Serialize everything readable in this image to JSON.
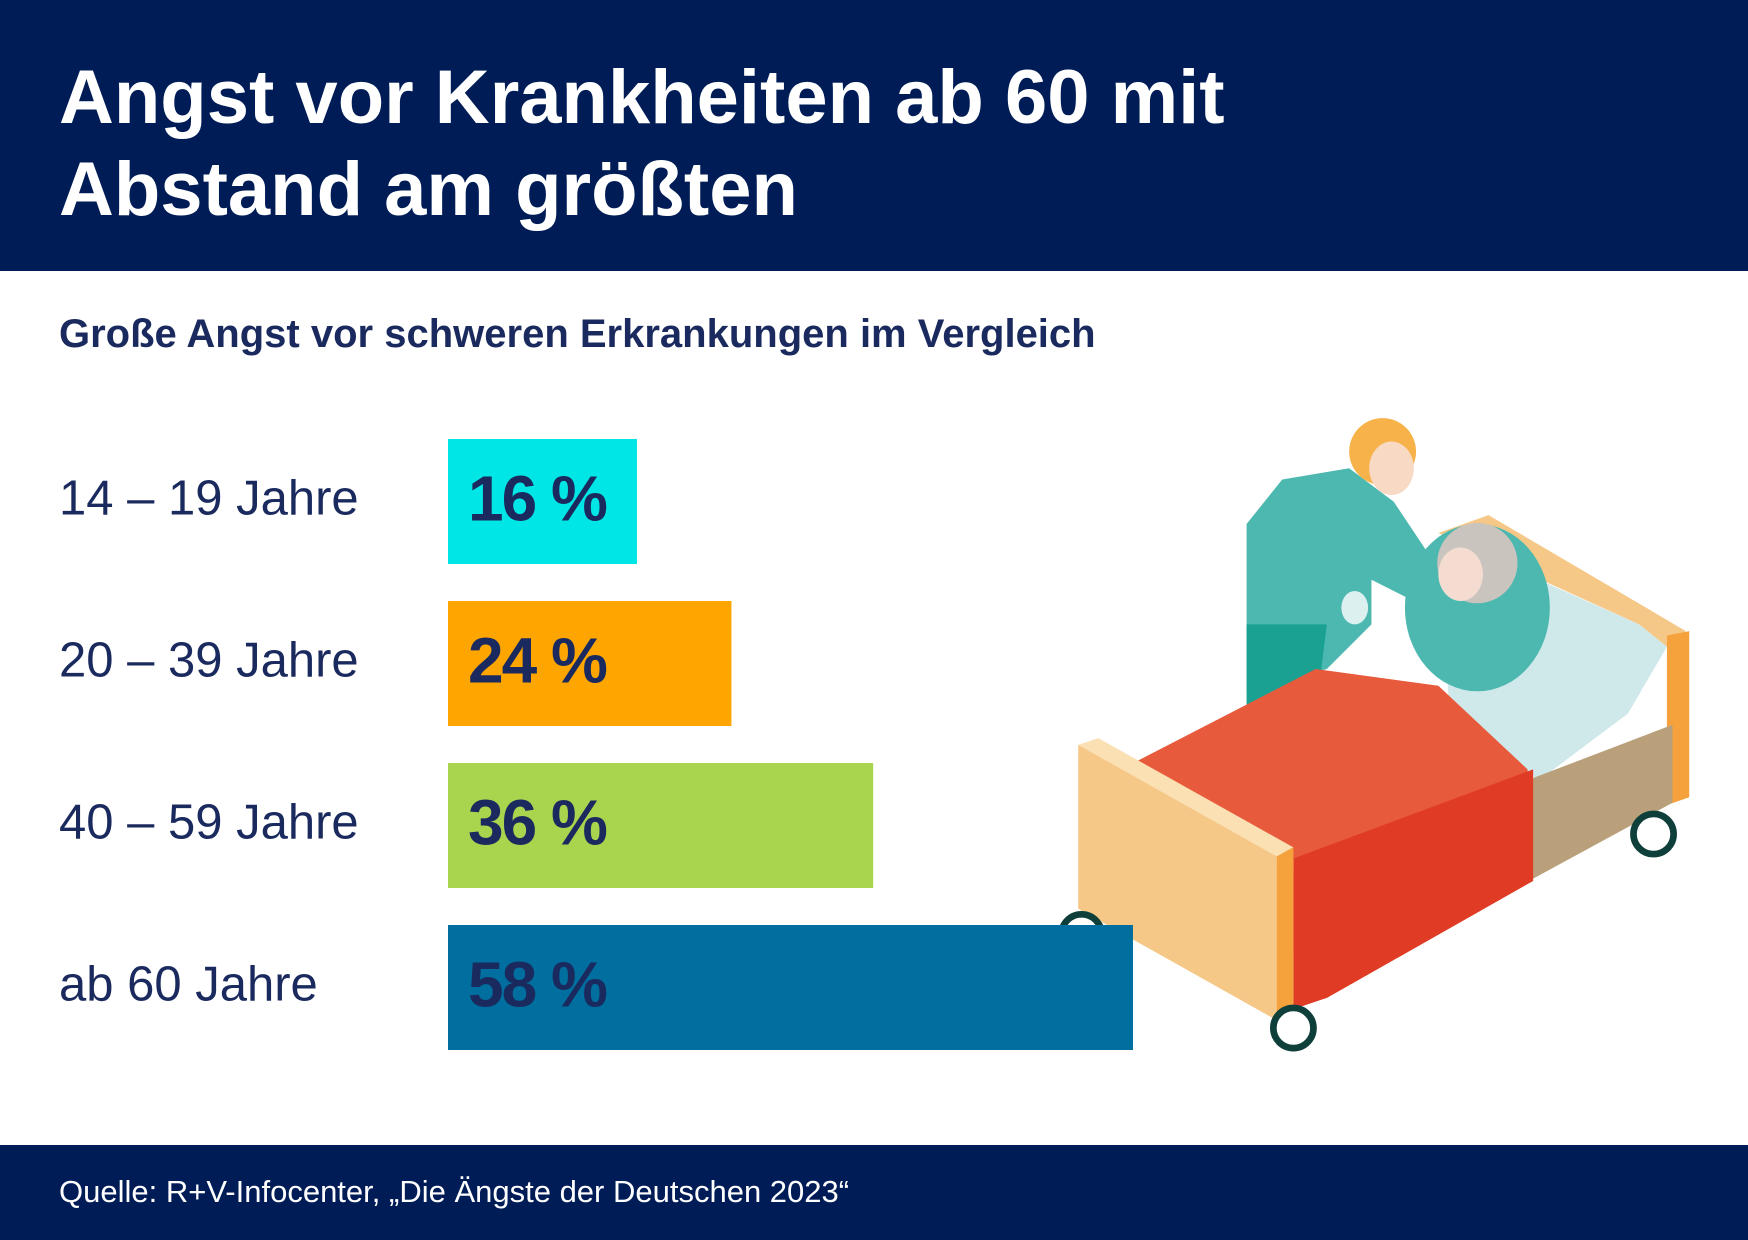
{
  "chart_data": {
    "type": "hbar",
    "title": "Angst vor Krankheiten ab 60 mit Abstand am größten",
    "subtitle": "Große Angst vor schweren Erkrankungen im Vergleich",
    "categories": [
      "14 – 19 Jahre",
      "20 – 39 Jahre",
      "40 – 59 Jahre",
      "ab 60 Jahre"
    ],
    "values": [
      16,
      24,
      36,
      58
    ],
    "value_labels": [
      "16 %",
      "24 %",
      "36 %",
      "58 %"
    ],
    "colors": [
      "#00e5e5",
      "#ffa500",
      "#a8d44e",
      "#006e9e"
    ],
    "xlim": [
      0,
      100
    ],
    "source": "Quelle: R+V-Infocenter, „Die Ängste der Deutschen 2023“"
  }
}
